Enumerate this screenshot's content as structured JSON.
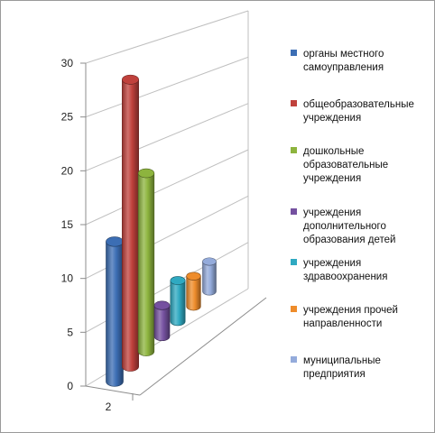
{
  "chart_data": {
    "type": "bar",
    "title": "",
    "xlabel": "",
    "ylabel": "",
    "categories": [
      "2"
    ],
    "ylim": [
      0,
      30
    ],
    "yticks": [
      0,
      5,
      10,
      15,
      20,
      25,
      30
    ],
    "grid": true,
    "legend_position": "right",
    "series": [
      {
        "name": "органы местного самоуправления",
        "label_lines": [
          "органы местного",
          "самоуправления"
        ],
        "values": [
          13
        ],
        "color": "#3C6EB4"
      },
      {
        "name": "общеобразовательные учреждения",
        "label_lines": [
          "общеобразовательные",
          "учреждения"
        ],
        "values": [
          27
        ],
        "color": "#C0413C"
      },
      {
        "name": "дошкольные образовательные учреждения",
        "label_lines": [
          "дошкольные",
          "образовательные",
          "учреждения"
        ],
        "values": [
          17
        ],
        "color": "#8DB43E"
      },
      {
        "name": "учреждения дополнительного образования детей",
        "label_lines": [
          "учреждения",
          "дополнительного",
          "образования детей"
        ],
        "values": [
          3
        ],
        "color": "#7551A0"
      },
      {
        "name": "учреждения здравоохранения",
        "label_lines": [
          "учреждения",
          "здравоохранения"
        ],
        "values": [
          4
        ],
        "color": "#2FA9C1"
      },
      {
        "name": "учреждения прочей направленности",
        "label_lines": [
          "учреждения прочей",
          "направленности"
        ],
        "values": [
          3
        ],
        "color": "#EE8C2B"
      },
      {
        "name": "муниципальные предприятия",
        "label_lines": [
          "муниципальные",
          "предприятия"
        ],
        "values": [
          3
        ],
        "color": "#94ABDB"
      }
    ]
  }
}
